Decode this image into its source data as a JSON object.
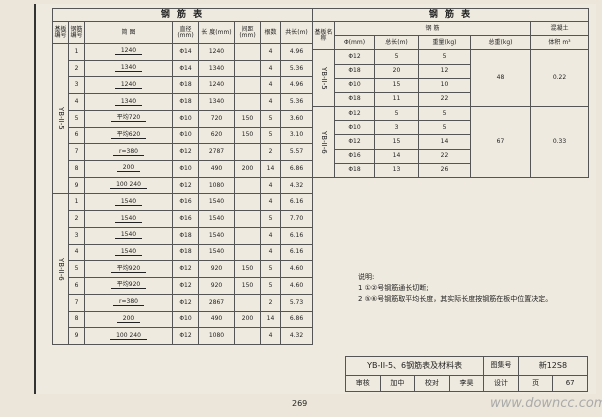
{
  "left_table": {
    "title": "钢 筋 表",
    "header": [
      "基板编号",
      "钢筋编号",
      "简 图",
      "直径(mm)",
      "长 度(mm)",
      "间距(mm)",
      "根数",
      "共长(m)"
    ],
    "groups": [
      {
        "name": "YB-II-5",
        "rows": [
          [
            "1",
            "1240",
            "Φ14",
            "1240",
            null,
            "4",
            "4.96"
          ],
          [
            "2",
            "1340",
            "Φ14",
            "1340",
            null,
            "4",
            "5.36"
          ],
          [
            "3",
            "1240",
            "Φ18",
            "1240",
            null,
            "4",
            "4.96"
          ],
          [
            "4",
            "1340",
            "Φ18",
            "1340",
            null,
            "4",
            "5.36"
          ],
          [
            "5",
            "平均720",
            "Φ10",
            "720",
            "150",
            "5",
            "3.60"
          ],
          [
            "6",
            "平均620",
            "Φ10",
            "620",
            "150",
            "5",
            "3.10"
          ],
          [
            "7",
            "r=380",
            "Φ12",
            "2787",
            null,
            "2",
            "5.57"
          ],
          [
            "8",
            "200",
            "Φ10",
            "490",
            "200",
            "14",
            "6.86"
          ],
          [
            "9",
            "100 240",
            "Φ12",
            "1080",
            null,
            "4",
            "4.32"
          ]
        ]
      },
      {
        "name": "YB-II-6",
        "rows": [
          [
            "1",
            "1540",
            "Φ16",
            "1540",
            null,
            "4",
            "6.16"
          ],
          [
            "2",
            "1540",
            "Φ16",
            "1540",
            null,
            "5",
            "7.70"
          ],
          [
            "3",
            "1540",
            "Φ18",
            "1540",
            null,
            "4",
            "6.16"
          ],
          [
            "4",
            "1540",
            "Φ18",
            "1540",
            null,
            "4",
            "6.16"
          ],
          [
            "5",
            "平均920",
            "Φ12",
            "920",
            "150",
            "5",
            "4.60"
          ],
          [
            "6",
            "平均920",
            "Φ12",
            "920",
            "150",
            "5",
            "4.60"
          ],
          [
            "7",
            "r=380",
            "Φ12",
            "2867",
            null,
            "2",
            "5.73"
          ],
          [
            "8",
            "200",
            "Φ10",
            "490",
            "200",
            "14",
            "6.86"
          ],
          [
            "9",
            "100 240",
            "Φ12",
            "1080",
            null,
            "4",
            "4.32"
          ]
        ]
      }
    ]
  },
  "right_table": {
    "title": "钢 筋 表",
    "name_header": "基板名称",
    "rebar_header": "钢 筋",
    "concrete_header": "混凝土",
    "sub_header": [
      "Φ(mm)",
      "总长(m)",
      "重量(kg)",
      "总重(kg)",
      "体积 m³"
    ],
    "groups": [
      {
        "name": "YB-II-5",
        "rows": [
          [
            "Φ12",
            "5",
            "5"
          ],
          [
            "Φ18",
            "20",
            "12"
          ],
          [
            "Φ10",
            "15",
            "10"
          ],
          [
            "Φ18",
            "11",
            "22"
          ]
        ],
        "total": "48",
        "volume": "0.22"
      },
      {
        "name": "YB-II-6",
        "rows": [
          [
            "Φ12",
            "5",
            "5"
          ],
          [
            "Φ10",
            "3",
            "5"
          ],
          [
            "Φ12",
            "15",
            "14"
          ],
          [
            "Φ16",
            "14",
            "22"
          ],
          [
            "Φ18",
            "13",
            "26"
          ]
        ],
        "total": "67",
        "volume": "0.33"
      }
    ]
  },
  "notes": {
    "title": "说明:",
    "items": [
      "1 ①②号钢筋通长切断;",
      "2 ⑤⑥号钢筋取平均长度，其实际长度按钢筋在板中位置决定。"
    ]
  },
  "title_block": {
    "title": "YB-II-5、6钢筋表及材料表",
    "atlas_label": "图集号",
    "atlas": "新12S8",
    "review": [
      "审核",
      "加中",
      "校对",
      "李昊",
      "设计",
      "页",
      "67"
    ]
  },
  "page_number": "269",
  "watermark": "www.downcc.com"
}
